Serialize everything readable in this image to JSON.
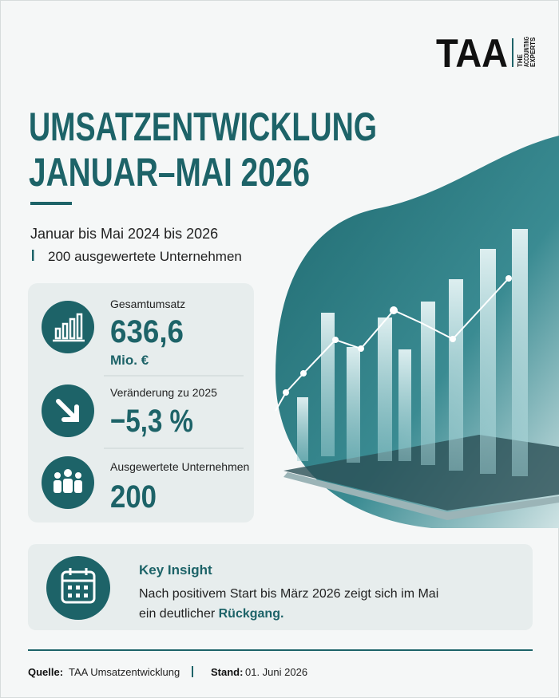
{
  "header": {
    "logo": {
      "text": "TAA",
      "tagline": [
        "THE",
        "ACCOUNTING",
        "EXPERTS"
      ]
    },
    "title": [
      "UMSATZENTWICKLUNG",
      "JANUAR–MAI 2026"
    ],
    "subtitle": "Januar bis Mai 2024 bis 2026",
    "sample": "200 ausgewertete Unternehmen"
  },
  "kpis": [
    {
      "label": "Gesamtumsatz",
      "value": "636,6",
      "unit": "Mio. €"
    },
    {
      "label": "Veränderung zu 2025",
      "value": "−5,3 %"
    },
    {
      "label": "Ausgewertete Unternehmen",
      "value": "200"
    }
  ],
  "insight": {
    "title": "Key Insight",
    "line1": "Nach positivem Start bis März 2026 zeigt sich im Mai",
    "line2": "ein deutlicher",
    "emphasis": "Rückgang."
  },
  "footer": {
    "source_label": "Quelle:",
    "source": "TAA Umsatzentwicklung",
    "date_label": "Stand:",
    "date": "01. Juni 2026"
  }
}
